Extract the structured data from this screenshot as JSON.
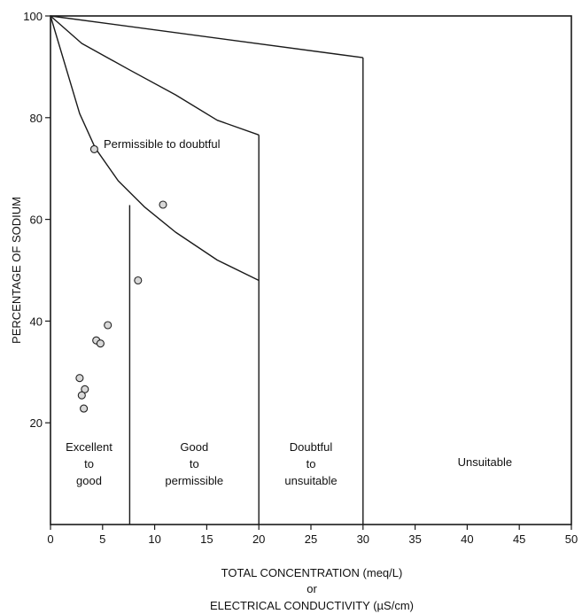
{
  "chart_data": {
    "type": "scatter",
    "title": "",
    "xlabel_lines": [
      "TOTAL CONCENTRATION (meq/L)",
      "or",
      "ELECTRICAL CONDUCTIVITY (µS/cm)"
    ],
    "ylabel": "PERCENTAGE OF SODIUM",
    "xlim": [
      0,
      50
    ],
    "ylim": [
      0,
      100
    ],
    "grid": false,
    "x_ticks": [
      0,
      5,
      10,
      15,
      20,
      25,
      30,
      35,
      40,
      45,
      50
    ],
    "x_tick_labels": [
      "0",
      "5",
      "10",
      "15",
      "20",
      "25",
      "30",
      "35",
      "40",
      "45",
      "50"
    ],
    "y_ticks": [
      20,
      40,
      60,
      80,
      100
    ],
    "y_tick_labels": [
      "20",
      "40",
      "60",
      "80",
      "100"
    ],
    "boundaries": [
      {
        "points": [
          [
            0,
            100
          ],
          [
            2.8,
            80.8
          ],
          [
            4.3,
            74.0
          ],
          [
            6.5,
            67.6
          ],
          [
            9.0,
            62.5
          ],
          [
            12.0,
            57.5
          ],
          [
            16.0,
            52.0
          ],
          [
            20.0,
            48.0
          ]
        ]
      },
      {
        "points": [
          [
            0,
            100
          ],
          [
            3.0,
            94.6
          ],
          [
            7.5,
            89.5
          ],
          [
            12.0,
            84.5
          ],
          [
            16.0,
            79.5
          ],
          [
            20.0,
            76.6
          ]
        ]
      },
      {
        "points": [
          [
            0,
            100
          ],
          [
            30.0,
            91.8
          ]
        ]
      },
      {
        "points": [
          [
            7.6,
            0
          ],
          [
            7.6,
            62.8
          ]
        ]
      },
      {
        "points": [
          [
            20.0,
            0
          ],
          [
            20.0,
            76.6
          ]
        ]
      },
      {
        "points": [
          [
            30.0,
            0
          ],
          [
            30.0,
            91.8
          ]
        ]
      }
    ],
    "zones": [
      {
        "lines": [
          "Excellent",
          "to",
          "good"
        ],
        "x": 3.7,
        "y": 14.5
      },
      {
        "lines": [
          "Good",
          "to",
          "permissible"
        ],
        "x": 13.8,
        "y": 14.5
      },
      {
        "lines": [
          "Doubtful",
          "to",
          "unsuitable"
        ],
        "x": 25.0,
        "y": 14.5
      },
      {
        "lines": [
          "Unsuitable"
        ],
        "x": 41.7,
        "y": 11.5
      },
      {
        "lines": [
          "Permissible to doubtful"
        ],
        "x": 5.1,
        "y": 74.0,
        "anchor": "start"
      }
    ],
    "points": [
      {
        "x": 4.2,
        "y": 73.8
      },
      {
        "x": 10.8,
        "y": 62.9
      },
      {
        "x": 8.4,
        "y": 48.0
      },
      {
        "x": 5.5,
        "y": 39.2
      },
      {
        "x": 4.4,
        "y": 36.2
      },
      {
        "x": 4.8,
        "y": 35.6
      },
      {
        "x": 2.8,
        "y": 28.8
      },
      {
        "x": 3.3,
        "y": 26.6
      },
      {
        "x": 3.0,
        "y": 25.4
      },
      {
        "x": 3.2,
        "y": 22.8
      }
    ]
  }
}
